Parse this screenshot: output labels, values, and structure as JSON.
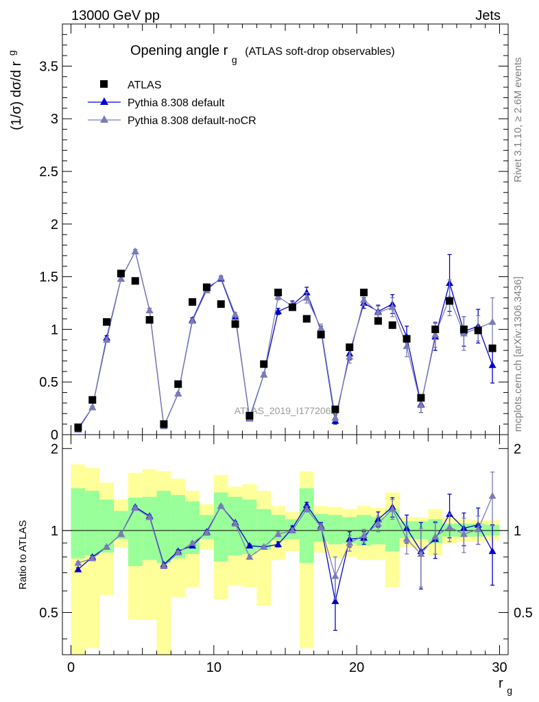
{
  "header": {
    "left": "13000 GeV pp",
    "right": "Jets"
  },
  "side_labels": {
    "rivet": "Rivet 3.1.10, ≥ 2.6M events",
    "mcplots": "mcplots.cern.ch [arXiv:1306.3436]"
  },
  "watermark": "ATLAS_2019_I1772062",
  "colors": {
    "atlas": "#000000",
    "default": "#0000cc",
    "nocr": "#7b7bb5",
    "band_inner": "#99ff99",
    "band_outer": "#ffff99"
  },
  "chart_data": [
    {
      "type": "scatter",
      "panel": "main",
      "title_main": "Opening angle r",
      "title_sub": "g",
      "title_extra": "(ATLAS soft-drop observables)",
      "ylabel": "(1/σ) dσ/d r",
      "ylabel_sub": "g",
      "ylim": [
        0,
        3.9
      ],
      "xlim": [
        -0.6,
        30.6
      ],
      "yticks": [
        "0",
        "0.5",
        "1",
        "1.5",
        "2",
        "2.5",
        "3",
        "3.5"
      ],
      "legend_position": "top-left",
      "x": [
        0.5,
        1.5,
        2.5,
        3.5,
        4.5,
        5.5,
        6.5,
        7.5,
        8.5,
        9.5,
        10.5,
        11.5,
        12.5,
        13.5,
        14.5,
        15.5,
        16.5,
        17.5,
        18.5,
        19.5,
        20.5,
        21.5,
        22.5,
        23.5,
        24.5,
        25.5,
        26.5,
        27.5,
        28.5,
        29.5
      ],
      "series": [
        {
          "name": "ATLAS",
          "marker": "square",
          "values": [
            0.07,
            0.33,
            1.07,
            1.53,
            1.46,
            1.09,
            0.1,
            0.48,
            1.26,
            1.4,
            1.24,
            1.05,
            0.18,
            0.67,
            1.35,
            1.21,
            1.1,
            0.95,
            0.24,
            0.83,
            1.35,
            1.08,
            1.04,
            0.91,
            0.35,
            1.0,
            1.27,
            1.0,
            0.99,
            0.82
          ]
        },
        {
          "name": "Pythia 8.308 default",
          "marker": "triangle",
          "values": [
            0.05,
            0.26,
            0.92,
            1.48,
            1.74,
            1.18,
            0.08,
            0.39,
            1.09,
            1.39,
            1.48,
            1.12,
            0.16,
            0.57,
            1.17,
            1.23,
            1.35,
            0.99,
            0.13,
            0.77,
            1.25,
            1.17,
            1.24,
            0.93,
            0.29,
            0.93,
            1.44,
            0.98,
            1.03,
            0.66
          ],
          "errors": [
            0.01,
            0.01,
            0.02,
            0.02,
            0.02,
            0.02,
            0.01,
            0.01,
            0.02,
            0.02,
            0.02,
            0.02,
            0.01,
            0.02,
            0.03,
            0.04,
            0.05,
            0.04,
            0.03,
            0.06,
            0.05,
            0.06,
            0.09,
            0.1,
            0.08,
            0.13,
            0.27,
            0.14,
            0.16,
            0.17
          ]
        },
        {
          "name": "Pythia 8.308 default-noCR",
          "marker": "triangle",
          "values": [
            0.06,
            0.26,
            0.9,
            1.48,
            1.74,
            1.18,
            0.08,
            0.39,
            1.08,
            1.37,
            1.49,
            1.14,
            0.15,
            0.57,
            1.31,
            1.22,
            1.3,
            1.01,
            0.16,
            0.74,
            1.28,
            1.16,
            1.21,
            0.84,
            0.28,
            0.95,
            1.3,
            0.96,
            1.01,
            1.07
          ],
          "errors": [
            0.01,
            0.01,
            0.02,
            0.02,
            0.02,
            0.02,
            0.01,
            0.01,
            0.02,
            0.02,
            0.02,
            0.02,
            0.01,
            0.02,
            0.03,
            0.04,
            0.05,
            0.04,
            0.03,
            0.06,
            0.05,
            0.06,
            0.09,
            0.1,
            0.07,
            0.12,
            0.17,
            0.16,
            0.12,
            0.23
          ]
        }
      ]
    },
    {
      "type": "line",
      "panel": "ratio",
      "ylabel": "Ratio to ATLAS",
      "xlabel": "r",
      "xlabel_sub": "g",
      "ylim": [
        0.35,
        2.25
      ],
      "xlim": [
        -0.6,
        30.6
      ],
      "yticks": [
        "0.5",
        "1",
        "2"
      ],
      "xticks": [
        "0",
        "10",
        "20",
        "30"
      ],
      "reference_line": 1,
      "x": [
        0.5,
        1.5,
        2.5,
        3.5,
        4.5,
        5.5,
        6.5,
        7.5,
        8.5,
        9.5,
        10.5,
        11.5,
        12.5,
        13.5,
        14.5,
        15.5,
        16.5,
        17.5,
        18.5,
        19.5,
        20.5,
        21.5,
        22.5,
        23.5,
        24.5,
        25.5,
        26.5,
        27.5,
        28.5,
        29.5
      ],
      "bands": {
        "inner_low": [
          0.79,
          0.81,
          0.83,
          0.93,
          0.74,
          0.78,
          0.76,
          0.79,
          0.82,
          0.93,
          0.77,
          0.81,
          0.82,
          0.85,
          0.92,
          0.93,
          0.76,
          0.91,
          0.89,
          0.9,
          0.88,
          0.89,
          0.84,
          0.94,
          0.93,
          0.9,
          0.95,
          0.95,
          0.95,
          0.96
        ],
        "inner_high": [
          1.43,
          1.4,
          1.3,
          1.18,
          1.32,
          1.33,
          1.4,
          1.35,
          1.28,
          1.14,
          1.38,
          1.33,
          1.3,
          1.2,
          1.14,
          1.1,
          1.43,
          1.15,
          1.14,
          1.12,
          1.14,
          1.12,
          1.19,
          1.08,
          1.08,
          1.1,
          1.06,
          1.06,
          1.06,
          1.05
        ],
        "outer_low": [
          0.35,
          0.37,
          0.58,
          0.87,
          0.47,
          0.47,
          0.35,
          0.57,
          0.62,
          0.85,
          0.56,
          0.63,
          0.62,
          0.53,
          0.78,
          0.84,
          0.37,
          0.83,
          0.79,
          0.8,
          0.78,
          0.78,
          0.62,
          0.87,
          0.86,
          0.81,
          0.9,
          0.91,
          0.91,
          0.92
        ],
        "outer_high": [
          1.75,
          1.7,
          1.5,
          1.3,
          1.63,
          1.68,
          1.65,
          1.55,
          1.4,
          1.25,
          1.6,
          1.45,
          1.48,
          1.4,
          1.23,
          1.17,
          1.65,
          1.23,
          1.22,
          1.2,
          1.23,
          1.21,
          1.38,
          1.12,
          1.12,
          1.2,
          1.12,
          1.1,
          1.09,
          1.09
        ]
      },
      "series": [
        {
          "name": "Pythia 8.308 default",
          "values": [
            0.72,
            0.8,
            0.87,
            0.97,
            1.22,
            1.13,
            0.75,
            0.84,
            0.88,
            0.99,
            1.23,
            1.07,
            0.88,
            0.87,
            0.89,
            1.02,
            1.24,
            1.04,
            0.55,
            0.93,
            0.94,
            1.1,
            1.22,
            1.02,
            0.84,
            0.93,
            1.15,
            1.02,
            1.05,
            0.84
          ],
          "errors": [
            0.01,
            0.01,
            0.01,
            0.01,
            0.01,
            0.01,
            0.01,
            0.01,
            0.01,
            0.01,
            0.01,
            0.01,
            0.01,
            0.01,
            0.02,
            0.02,
            0.03,
            0.03,
            0.12,
            0.06,
            0.05,
            0.07,
            0.1,
            0.12,
            0.23,
            0.14,
            0.21,
            0.14,
            0.16,
            0.21
          ]
        },
        {
          "name": "Pythia 8.308 default-noCR",
          "values": [
            0.76,
            0.79,
            0.87,
            0.97,
            1.21,
            1.12,
            0.74,
            0.83,
            0.9,
            0.98,
            1.23,
            1.06,
            0.8,
            0.87,
            0.97,
            1.0,
            1.2,
            1.03,
            0.68,
            0.9,
            0.96,
            1.06,
            1.2,
            0.93,
            0.82,
            0.95,
            1.03,
            0.97,
            1.01,
            1.34
          ],
          "errors": [
            0.01,
            0.01,
            0.01,
            0.01,
            0.01,
            0.01,
            0.01,
            0.01,
            0.01,
            0.01,
            0.01,
            0.01,
            0.01,
            0.01,
            0.02,
            0.02,
            0.03,
            0.03,
            0.12,
            0.06,
            0.05,
            0.07,
            0.1,
            0.11,
            0.2,
            0.13,
            0.12,
            0.14,
            0.12,
            0.3
          ]
        }
      ]
    }
  ]
}
